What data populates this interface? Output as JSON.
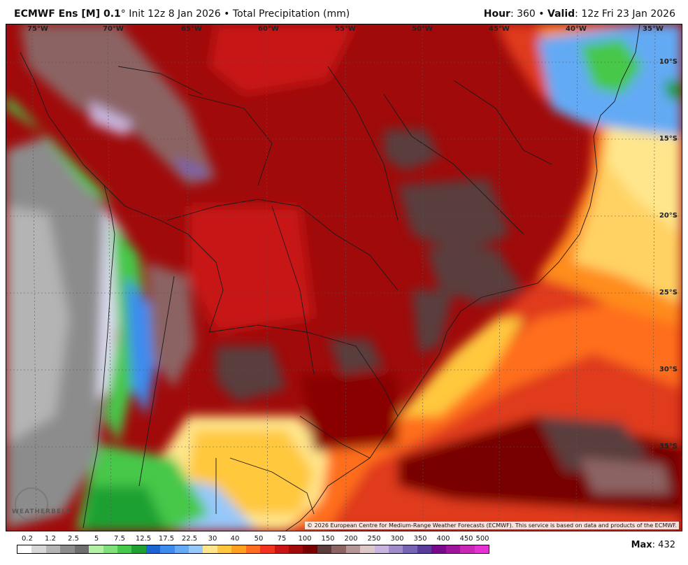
{
  "header": {
    "model": "ECMWF Ens [M] 0.1",
    "degree": "°",
    "init": " Init 12z 8 Jan 2026",
    "bullet": " • ",
    "field": "Total Precipitation (mm)",
    "hour_label": "Hour",
    "hour_value": ": 360",
    "valid_label": "Valid",
    "valid_value": ": 12z Fri 23 Jan 2026"
  },
  "map": {
    "longitude_labels": [
      "75°W",
      "70°W",
      "65°W",
      "60°W",
      "55°W",
      "50°W",
      "45°W",
      "40°W",
      "35°W"
    ],
    "latitude_labels": [
      "10°S",
      "15°S",
      "20°S",
      "25°S",
      "30°S",
      "35°S"
    ],
    "copyright": "© 2026 European Centre for Medium-Range Weather Forecasts (ECMWF). This service is based on data and products of the ECMWF.",
    "logo_text": "WEATHERBELL"
  },
  "legend": {
    "labels": [
      "0.2",
      "1.2",
      "2.5",
      "5",
      "7.5",
      "12.5",
      "17.5",
      "22.5",
      "30",
      "40",
      "50",
      "75",
      "100",
      "150",
      "200",
      "250",
      "300",
      "350",
      "400",
      "450",
      "500"
    ],
    "colors": [
      "#ffffff",
      "#d6d6d6",
      "#b4b4b4",
      "#8c8c8c",
      "#6e6e6e",
      "#b2f0a4",
      "#7ee07a",
      "#46c84a",
      "#1ea032",
      "#1c64d2",
      "#3c8cf0",
      "#64aaf5",
      "#96c8fa",
      "#ffe68c",
      "#ffc83c",
      "#ffa01e",
      "#ff6e1e",
      "#f0321e",
      "#c81414",
      "#a00a0a",
      "#780000",
      "#5a3c3c",
      "#8c6464",
      "#b49696",
      "#dcc8c8",
      "#c8b4dc",
      "#a08cc8",
      "#7864b4",
      "#5a3c9a",
      "#780a8c",
      "#a0149c",
      "#c828b4",
      "#e632d2"
    ]
  },
  "max": {
    "label": "Max",
    "value": ": 432"
  }
}
